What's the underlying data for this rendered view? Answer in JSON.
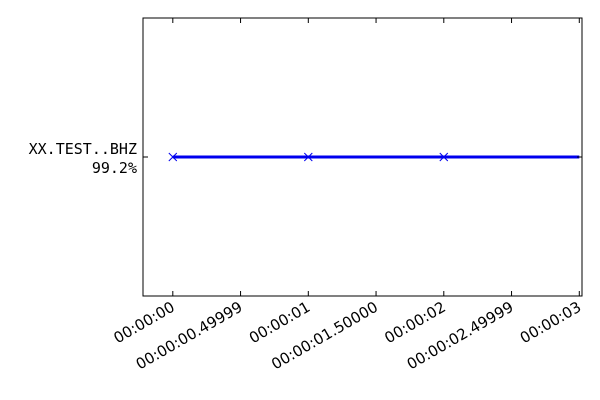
{
  "chart_data": {
    "type": "line",
    "title": "",
    "xlabel": "",
    "ylabel": "",
    "grid": false,
    "legend": "none",
    "xlim": [
      -0.22,
      3.02
    ],
    "x_ticks": [
      {
        "value": 0.0,
        "label": "00:00:00"
      },
      {
        "value": 0.5,
        "label": "00:00:00.49999"
      },
      {
        "value": 1.0,
        "label": "00:00:01"
      },
      {
        "value": 1.5,
        "label": "00:00:01.50000"
      },
      {
        "value": 2.0,
        "label": "00:00:02"
      },
      {
        "value": 2.5,
        "label": "00:00:02.49999"
      },
      {
        "value": 3.0,
        "label": "00:00:03"
      }
    ],
    "y_ticks": [
      {
        "value": 0,
        "label": "XX.TEST..BHZ",
        "sublabel": "99.2%"
      }
    ],
    "ylim": [
      -1,
      1
    ],
    "series": [
      {
        "name": "",
        "color": "#0000ee",
        "y": 0,
        "segment": [
          0.0,
          3.0
        ],
        "markers": [
          0.0,
          1.0,
          2.0
        ]
      }
    ]
  }
}
